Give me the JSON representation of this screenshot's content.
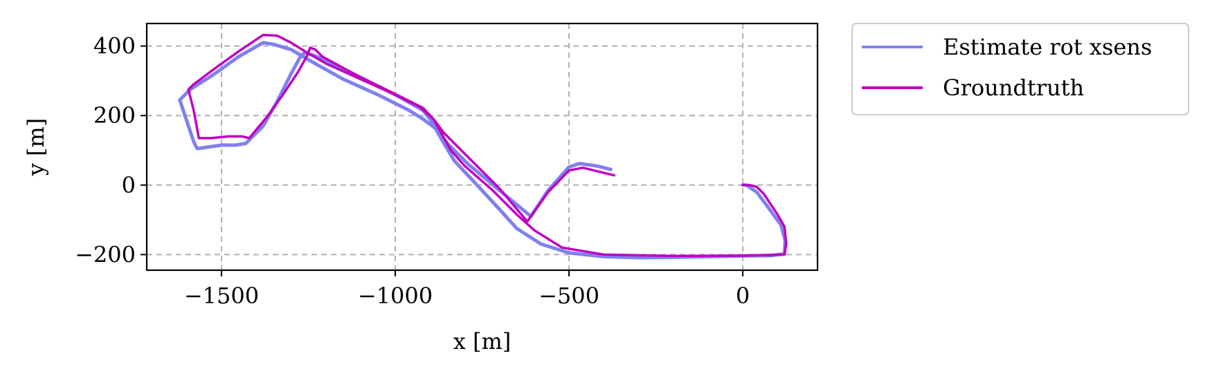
{
  "chart_data": {
    "type": "line",
    "title": "",
    "xlabel": "x [m]",
    "ylabel": "y [m]",
    "xlim": [
      -1715,
      215
    ],
    "ylim": [
      -245,
      465
    ],
    "xticks": [
      -1500,
      -1000,
      -500,
      0
    ],
    "xtick_labels": [
      "−1500",
      "−1000",
      "−500",
      "0"
    ],
    "yticks": [
      400,
      200,
      0,
      -200
    ],
    "ytick_labels": [
      "400",
      "200",
      "0",
      "−200"
    ],
    "grid": true,
    "legend_position": "outside upper right",
    "series": [
      {
        "name": "Estimate rot xsens",
        "color": "#8080f0",
        "points": [
          [
            -380,
            45
          ],
          [
            -420,
            55
          ],
          [
            -470,
            62
          ],
          [
            -500,
            52
          ],
          [
            -560,
            -15
          ],
          [
            -610,
            -90
          ],
          [
            -700,
            -15
          ],
          [
            -790,
            60
          ],
          [
            -850,
            120
          ],
          [
            -880,
            160
          ],
          [
            -920,
            190
          ],
          [
            -960,
            215
          ],
          [
            -1050,
            260
          ],
          [
            -1150,
            305
          ],
          [
            -1240,
            355
          ],
          [
            -1300,
            390
          ],
          [
            -1350,
            405
          ],
          [
            -1380,
            410
          ],
          [
            -1450,
            370
          ],
          [
            -1520,
            320
          ],
          [
            -1590,
            275
          ],
          [
            -1620,
            245
          ],
          [
            -1600,
            185
          ],
          [
            -1580,
            125
          ],
          [
            -1570,
            105
          ],
          [
            -1500,
            115
          ],
          [
            -1460,
            115
          ],
          [
            -1430,
            120
          ],
          [
            -1380,
            170
          ],
          [
            -1340,
            240
          ],
          [
            -1300,
            320
          ],
          [
            -1270,
            375
          ],
          [
            -1260,
            380
          ],
          [
            -1240,
            375
          ],
          [
            -1200,
            360
          ],
          [
            -1100,
            310
          ],
          [
            -1000,
            260
          ],
          [
            -920,
            215
          ],
          [
            -900,
            190
          ],
          [
            -860,
            120
          ],
          [
            -830,
            70
          ],
          [
            -760,
            -5
          ],
          [
            -700,
            -70
          ],
          [
            -650,
            -125
          ],
          [
            -580,
            -170
          ],
          [
            -500,
            -195
          ],
          [
            -400,
            -206
          ],
          [
            -300,
            -209
          ],
          [
            -200,
            -208
          ],
          [
            -100,
            -206
          ],
          [
            0,
            -204
          ],
          [
            80,
            -203
          ],
          [
            120,
            -198
          ],
          [
            122,
            -160
          ],
          [
            110,
            -115
          ],
          [
            70,
            -60
          ],
          [
            40,
            -20
          ],
          [
            10,
            0
          ],
          [
            0,
            0
          ]
        ]
      },
      {
        "name": "Groundtruth",
        "color": "#c000c0",
        "points": [
          [
            -370,
            28
          ],
          [
            -420,
            40
          ],
          [
            -460,
            50
          ],
          [
            -500,
            42
          ],
          [
            -560,
            -20
          ],
          [
            -620,
            -105
          ],
          [
            -700,
            -10
          ],
          [
            -790,
            80
          ],
          [
            -860,
            150
          ],
          [
            -890,
            190
          ],
          [
            -930,
            225
          ],
          [
            -1000,
            260
          ],
          [
            -1100,
            305
          ],
          [
            -1200,
            350
          ],
          [
            -1260,
            385
          ],
          [
            -1300,
            410
          ],
          [
            -1340,
            430
          ],
          [
            -1380,
            432
          ],
          [
            -1450,
            385
          ],
          [
            -1520,
            335
          ],
          [
            -1580,
            290
          ],
          [
            -1595,
            275
          ],
          [
            -1580,
            215
          ],
          [
            -1565,
            135
          ],
          [
            -1530,
            135
          ],
          [
            -1480,
            140
          ],
          [
            -1440,
            140
          ],
          [
            -1420,
            135
          ],
          [
            -1370,
            195
          ],
          [
            -1320,
            265
          ],
          [
            -1280,
            325
          ],
          [
            -1255,
            370
          ],
          [
            -1245,
            395
          ],
          [
            -1230,
            390
          ],
          [
            -1210,
            370
          ],
          [
            -1100,
            310
          ],
          [
            -1000,
            262
          ],
          [
            -920,
            222
          ],
          [
            -890,
            190
          ],
          [
            -840,
            100
          ],
          [
            -800,
            55
          ],
          [
            -720,
            -15
          ],
          [
            -650,
            -85
          ],
          [
            -600,
            -130
          ],
          [
            -520,
            -180
          ],
          [
            -400,
            -200
          ],
          [
            -200,
            -204
          ],
          [
            0,
            -203
          ],
          [
            120,
            -200
          ],
          [
            125,
            -170
          ],
          [
            120,
            -120
          ],
          [
            100,
            -85
          ],
          [
            60,
            -25
          ],
          [
            40,
            -5
          ],
          [
            20,
            0
          ],
          [
            0,
            0
          ]
        ]
      }
    ]
  }
}
